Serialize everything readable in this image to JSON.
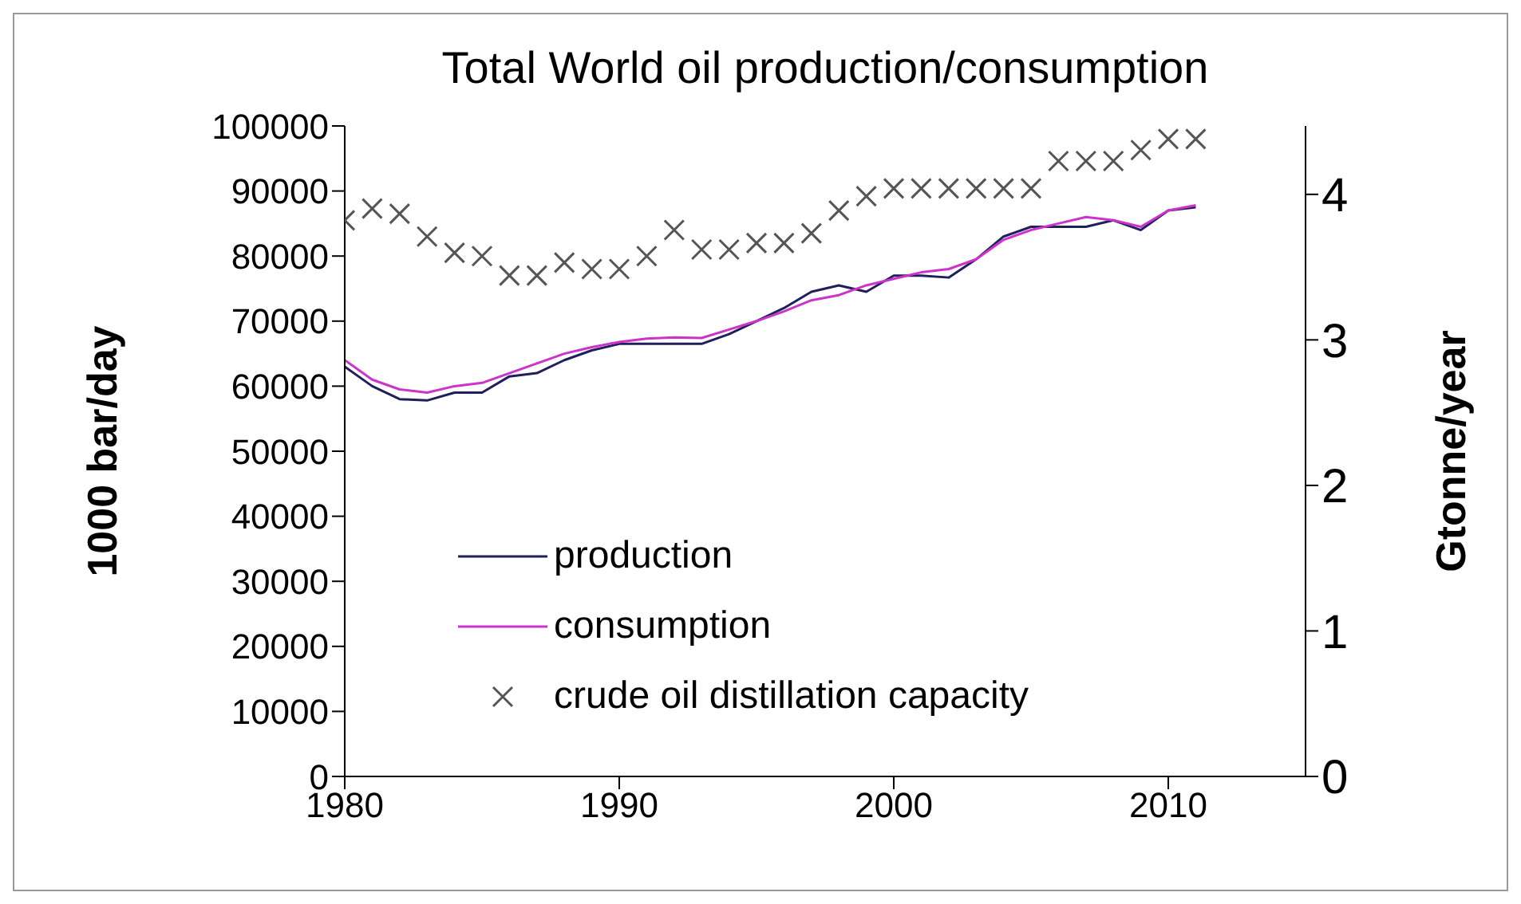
{
  "chart_data": {
    "type": "line",
    "title": "Total World oil production/consumption",
    "ylabel": "1000 bar/day",
    "y2label": "Gtonne/year",
    "x": [
      1980,
      1981,
      1982,
      1983,
      1984,
      1985,
      1986,
      1987,
      1988,
      1989,
      1990,
      1991,
      1992,
      1993,
      1994,
      1995,
      1996,
      1997,
      1998,
      1999,
      2000,
      2001,
      2002,
      2003,
      2004,
      2005,
      2006,
      2007,
      2008,
      2009,
      2010,
      2011
    ],
    "series": [
      {
        "name": "production",
        "color": "#1f1f5c",
        "values": [
          63000,
          60000,
          58000,
          57800,
          59000,
          59000,
          61500,
          62000,
          64000,
          65500,
          66500,
          66500,
          66500,
          66500,
          68000,
          70000,
          72000,
          74500,
          75500,
          74500,
          77000,
          77000,
          76700,
          79500,
          83000,
          84500,
          84500,
          84500,
          85500,
          84000,
          87000,
          87500
        ]
      },
      {
        "name": "consumption",
        "color": "#cc33cc",
        "values": [
          64000,
          61000,
          59500,
          59000,
          60000,
          60500,
          62000,
          63500,
          65000,
          66000,
          66800,
          67300,
          67500,
          67400,
          68700,
          70000,
          71500,
          73200,
          74000,
          75500,
          76500,
          77500,
          78000,
          79500,
          82500,
          84000,
          85000,
          86000,
          85500,
          84500,
          87000,
          87800
        ]
      },
      {
        "name": "crude oil distillation capacity",
        "type": "scatter",
        "marker": "cross",
        "color": "#555555",
        "values": [
          85500,
          87300,
          86500,
          83000,
          80500,
          80000,
          77000,
          77000,
          79000,
          78000,
          78000,
          80000,
          84000,
          81000,
          81000,
          82000,
          82000,
          83500,
          87000,
          89200,
          90400,
          90400,
          90400,
          90400,
          90400,
          90400,
          94600,
          94600,
          94600,
          96300,
          98000,
          98000
        ]
      }
    ],
    "xlim": [
      1980,
      2015
    ],
    "xticks": [
      1980,
      1990,
      2000,
      2010
    ],
    "ylim": [
      0,
      100000
    ],
    "yticks": [
      0,
      10000,
      20000,
      30000,
      40000,
      50000,
      60000,
      70000,
      80000,
      90000,
      100000
    ],
    "y2lim": [
      0,
      4.47
    ],
    "y2ticks": [
      0,
      1,
      2,
      3,
      4
    ],
    "grid": false,
    "legend": "bottom left"
  }
}
